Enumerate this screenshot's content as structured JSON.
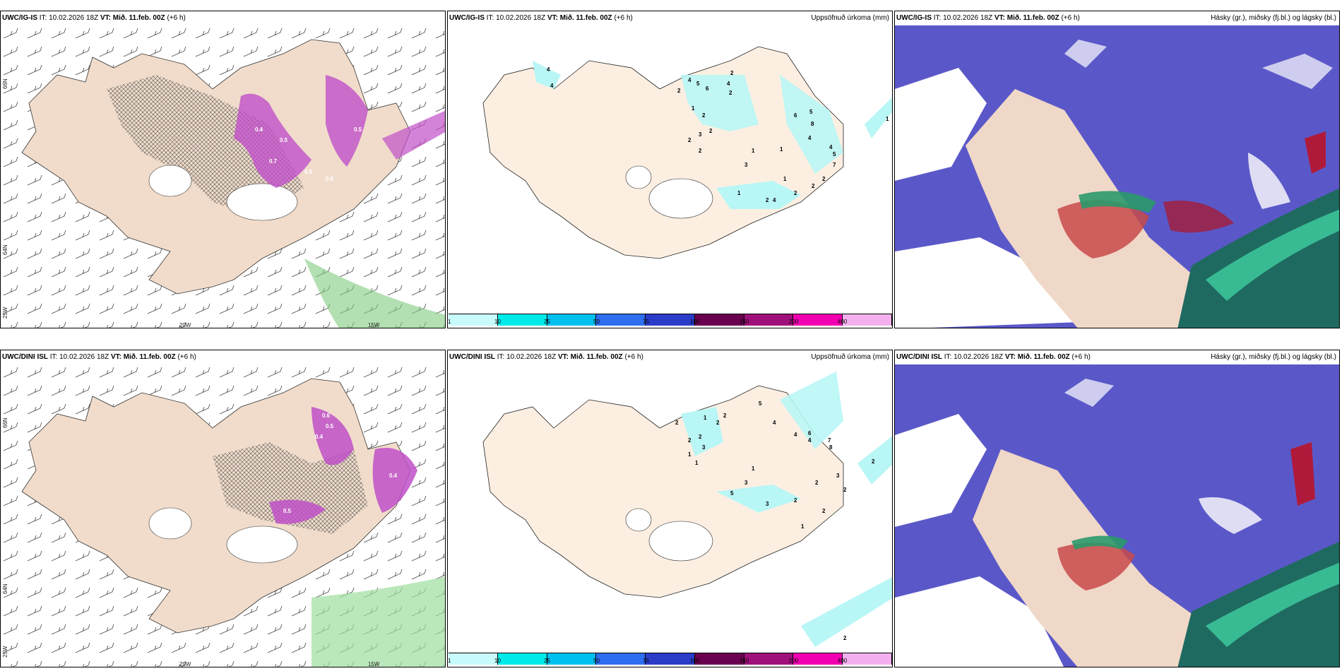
{
  "rows": [
    {
      "model": "UWC/IG-IS",
      "it_label": "IT:",
      "it_value": "10.02.2026 18Z",
      "vt_label": "VT:",
      "vt_value": "Mið. 11.feb. 00Z",
      "lead": "(+6 h)"
    },
    {
      "model": "UWC/DINI ISL",
      "it_label": "IT:",
      "it_value": "10.02.2026 18Z",
      "vt_label": "VT:",
      "vt_value": "Mið. 11.feb. 00Z",
      "lead": "(+6 h)"
    }
  ],
  "precip_title": "Uppsöfnuð úrkoma (mm)",
  "cloud_title": "Hásky (gr.), miðsky (fj.bl.) og lágsky (bl.)",
  "axes": {
    "lat_top": "66N",
    "lat_bottom": "64N",
    "lon_left": "20W",
    "lon_right": "15W",
    "corner": "25W"
  },
  "colorbar": {
    "ticks": [
      "1",
      "10",
      "25",
      "50",
      "75",
      "100",
      "150",
      "200",
      "400"
    ],
    "colors": [
      "#c8fbfb",
      "#00eaea",
      "#00c0f0",
      "#2e6ef0",
      "#2a3cc8",
      "#6a0050",
      "#a0107a",
      "#f000b0",
      "#f4b0ee"
    ]
  },
  "precip_values_top": [
    "4",
    "4",
    "4",
    "5",
    "6",
    "4",
    "2",
    "2",
    "2",
    "1",
    "2",
    "2",
    "3",
    "2",
    "2",
    "6",
    "5",
    "8",
    "4",
    "1",
    "1",
    "3",
    "4",
    "5",
    "7",
    "2",
    "2",
    "2",
    "1",
    "1",
    "2",
    "4",
    "1"
  ],
  "precip_values_bottom": [
    "2",
    "1",
    "2",
    "2",
    "3",
    "1",
    "1",
    "5",
    "4",
    "6",
    "4",
    "4",
    "7",
    "8",
    "2",
    "2",
    "1",
    "3",
    "5",
    "3",
    "2",
    "2",
    "3",
    "2",
    "2",
    "1",
    "2",
    "2"
  ],
  "wind_values_top": [
    "0.4",
    "0.5",
    "0.7",
    "0.5",
    "0.6",
    "0.5"
  ],
  "wind_values_bottom": [
    "0.6",
    "0.5",
    "0.4",
    "0.5",
    "0.4"
  ]
}
